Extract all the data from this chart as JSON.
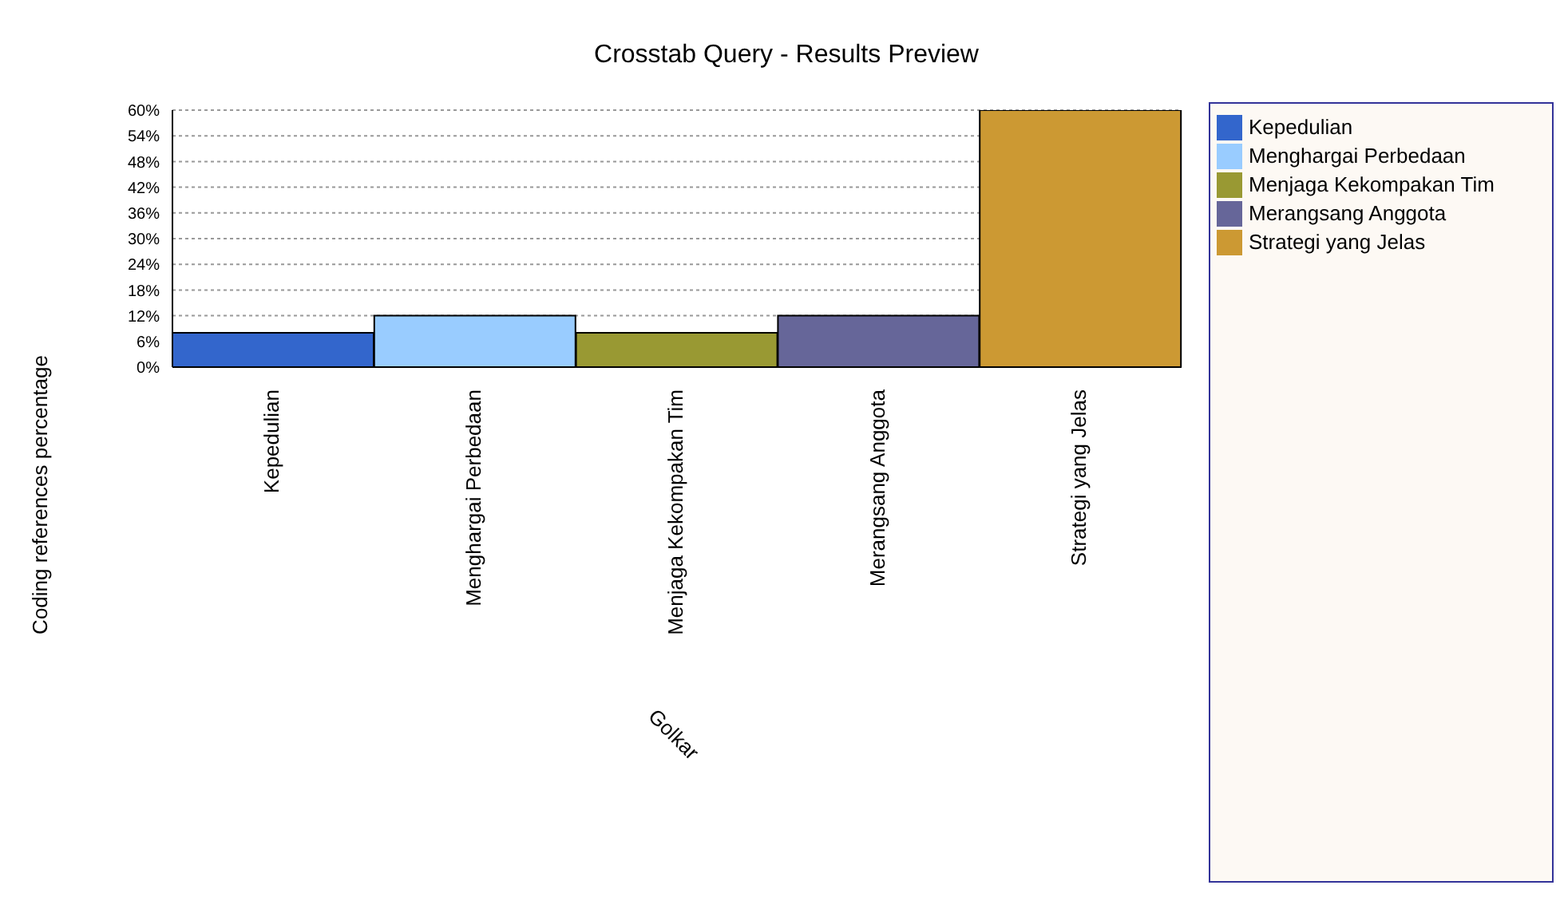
{
  "chart_data": {
    "type": "bar",
    "title": "Crosstab Query - Results Preview",
    "xlabel": "Golkar",
    "ylabel": "Coding references percentage",
    "categories": [
      "Kepedulian",
      "Menghargai Perbedaan",
      "Menjaga Kekompakan Tim",
      "Merangsang Anggota",
      "Strategi yang Jelas"
    ],
    "stacked": true,
    "series": [
      {
        "name": "Kepedulian",
        "color": "#3366cc",
        "values": [
          8,
          null,
          null,
          null,
          null
        ]
      },
      {
        "name": "Menghargai Perbedaan",
        "color": "#99ccff",
        "values": [
          null,
          12,
          null,
          null,
          null
        ]
      },
      {
        "name": "Menjaga Kekompakan Tim",
        "color": "#999933",
        "values": [
          null,
          null,
          8,
          null,
          null
        ]
      },
      {
        "name": "Merangsang Anggota",
        "color": "#666699",
        "values": [
          null,
          null,
          null,
          12,
          null
        ]
      },
      {
        "name": "Strategi yang Jelas",
        "color": "#cc9933",
        "values": [
          null,
          null,
          null,
          null,
          60
        ]
      }
    ],
    "ylim": [
      0,
      60
    ],
    "yticks": [
      {
        "value": 0,
        "label": "0%"
      },
      {
        "value": 6,
        "label": "6%"
      },
      {
        "value": 12,
        "label": "12%"
      },
      {
        "value": 18,
        "label": "18%"
      },
      {
        "value": 24,
        "label": "24%"
      },
      {
        "value": 30,
        "label": "30%"
      },
      {
        "value": 36,
        "label": "36%"
      },
      {
        "value": 42,
        "label": "42%"
      },
      {
        "value": 48,
        "label": "48%"
      },
      {
        "value": 54,
        "label": "54%"
      },
      {
        "value": 60,
        "label": "60%"
      }
    ],
    "grid": "y",
    "legend": "right"
  }
}
